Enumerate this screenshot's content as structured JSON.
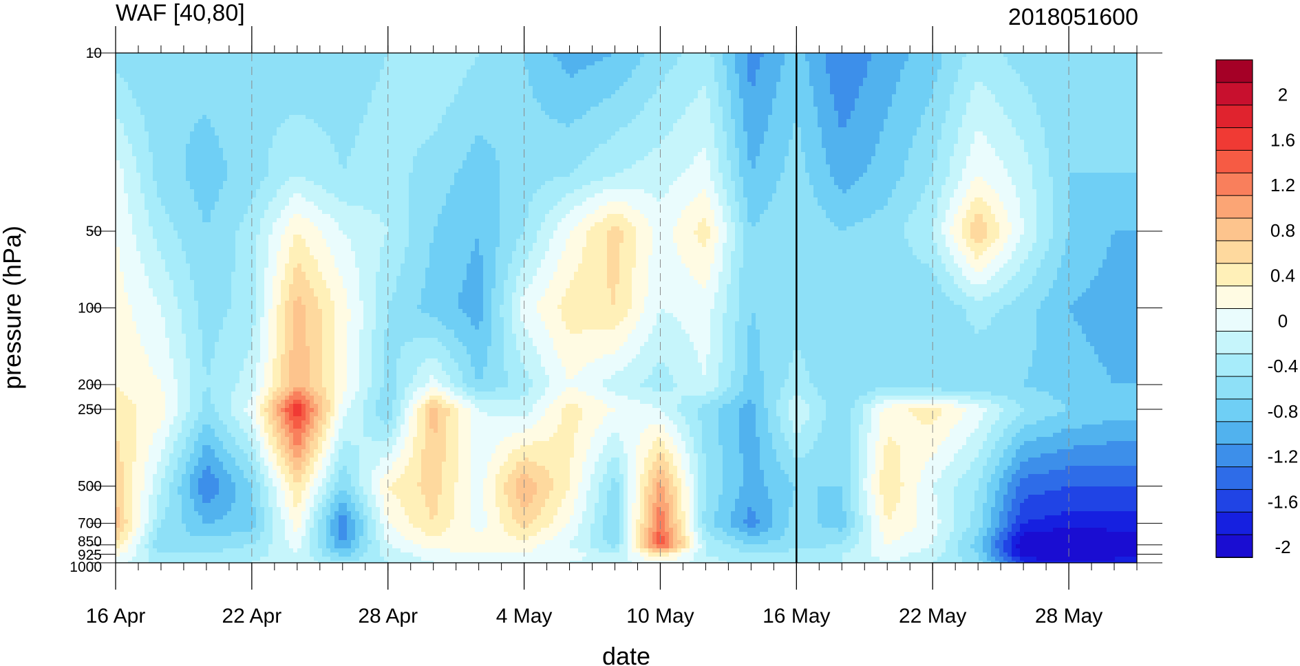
{
  "chart_data": {
    "type": "heatmap",
    "title": "WAF [40,80]",
    "subtitle": "2018051600",
    "xlabel": "date",
    "ylabel": "pressure (hPa)",
    "x_ticks": [
      "16 Apr",
      "22 Apr",
      "28 Apr",
      "4 May",
      "10 May",
      "16 May",
      "22 May",
      "28 May"
    ],
    "x_range": [
      "16 Apr",
      "31 May"
    ],
    "y_scale": "log",
    "y_reversed": true,
    "y_ticks": [
      10,
      50,
      100,
      200,
      250,
      500,
      700,
      850,
      925,
      1000
    ],
    "ylim": [
      10,
      1000
    ],
    "current_date_marker": "16 May",
    "dashed_gridlines": [
      "22 Apr",
      "28 Apr",
      "4 May",
      "10 May",
      "22 May",
      "28 May"
    ],
    "colorbar": {
      "labels": [
        "2",
        "1.6",
        "1.2",
        "0.8",
        "0.4",
        "0",
        "-0.4",
        "-0.8",
        "-1.2",
        "-1.6",
        "-2"
      ],
      "levels": [
        2.4,
        2.2,
        2.0,
        1.8,
        1.6,
        1.4,
        1.2,
        1.0,
        0.8,
        0.6,
        0.4,
        0.2,
        0.0,
        -0.2,
        -0.4,
        -0.6,
        -0.8,
        -1.0,
        -1.2,
        -1.4,
        -1.6,
        -1.8,
        -2.0,
        -2.2,
        -2.4
      ],
      "colors": [
        "#a50026",
        "#c8102e",
        "#e0232e",
        "#f03a34",
        "#f65b44",
        "#f97f5c",
        "#fba575",
        "#fdc48d",
        "#fed99e",
        "#fff0b8",
        "#fffbe3",
        "#eafcfd",
        "#c6f5fb",
        "#a7ecfa",
        "#8ee0f7",
        "#6fcff5",
        "#51b2ee",
        "#3d8fea",
        "#2e6ce8",
        "#2044e5",
        "#1620e0",
        "#1a0dd2"
      ]
    },
    "pressure_levels": [
      10,
      30,
      50,
      100,
      200,
      250,
      500,
      700,
      850,
      925,
      1000
    ],
    "days_x": [
      "16 Apr",
      "18 Apr",
      "20 Apr",
      "22 Apr",
      "24 Apr",
      "26 Apr",
      "28 Apr",
      "30 Apr",
      "2 May",
      "4 May",
      "6 May",
      "8 May",
      "10 May",
      "12 May",
      "14 May",
      "16 May",
      "18 May",
      "20 May",
      "22 May",
      "24 May",
      "26 May",
      "28 May",
      "30 May"
    ],
    "values": [
      [
        -0.5,
        -0.6,
        -0.5,
        -0.4,
        -0.6,
        -0.5,
        -0.4,
        -0.2,
        -0.4,
        -0.6,
        -0.9,
        -0.8,
        -0.5,
        -0.3,
        -1.1,
        -0.7,
        -1.2,
        -0.9,
        -0.7,
        -0.3,
        -0.5,
        -0.6,
        -0.5
      ],
      [
        0.1,
        -0.5,
        -0.7,
        -0.5,
        -0.2,
        -0.4,
        -0.3,
        -0.5,
        -0.7,
        -0.5,
        -0.4,
        -0.2,
        -0.1,
        0.1,
        -0.8,
        -0.5,
        -0.9,
        -0.7,
        -0.4,
        0.2,
        -0.1,
        -0.6,
        -0.6
      ],
      [
        0.2,
        -0.3,
        -0.6,
        -0.3,
        0.4,
        0.0,
        -0.2,
        -0.6,
        -0.8,
        -0.4,
        0.2,
        0.7,
        0.1,
        0.5,
        -0.6,
        -0.4,
        -0.6,
        -0.5,
        -0.2,
        0.8,
        0.0,
        -0.6,
        -0.8
      ],
      [
        0.3,
        0.0,
        -0.5,
        -0.3,
        0.9,
        0.3,
        -0.4,
        -0.7,
        -0.9,
        0.1,
        0.5,
        0.6,
        0.0,
        0.1,
        -0.6,
        -0.5,
        -0.6,
        -0.6,
        -0.6,
        -0.3,
        -0.5,
        -0.8,
        -0.9
      ],
      [
        0.4,
        0.2,
        -0.4,
        -0.1,
        1.0,
        0.3,
        -0.5,
        0.1,
        -0.6,
        -0.3,
        0.2,
        -0.1,
        -0.3,
        0.0,
        -0.7,
        -0.3,
        -0.6,
        -0.5,
        -0.6,
        -0.6,
        -0.6,
        -0.7,
        -0.8
      ],
      [
        0.5,
        0.3,
        -0.5,
        0.1,
        1.8,
        0.1,
        -0.6,
        0.9,
        0.0,
        -0.1,
        0.5,
        0.2,
        0.0,
        -0.5,
        -0.9,
        0.0,
        -0.6,
        0.3,
        0.5,
        0.1,
        -0.4,
        -0.6,
        -0.7
      ],
      [
        0.8,
        -0.2,
        -1.2,
        -0.6,
        0.6,
        -0.6,
        0.4,
        0.7,
        0.1,
        1.0,
        0.4,
        -0.5,
        1.1,
        -0.4,
        -0.9,
        -0.6,
        -0.6,
        0.6,
        0.0,
        -0.4,
        -1.3,
        -1.4,
        -1.4
      ],
      [
        0.9,
        -0.4,
        -0.8,
        -0.7,
        0.3,
        -1.2,
        0.2,
        0.6,
        0.1,
        0.7,
        0.2,
        -0.6,
        1.4,
        -0.5,
        -1.1,
        -0.5,
        -0.7,
        0.4,
        0.1,
        -0.5,
        -1.6,
        -1.7,
        -1.7
      ],
      [
        0.6,
        -0.6,
        -0.5,
        -0.4,
        0.1,
        -1.0,
        0.0,
        0.3,
        0.3,
        0.3,
        0.0,
        -0.5,
        1.6,
        -0.2,
        -0.6,
        -0.5,
        -0.4,
        0.2,
        0.0,
        -0.7,
        -2.0,
        -2.2,
        -2.0
      ],
      [
        0.3,
        -0.4,
        -0.4,
        -0.3,
        0.0,
        -0.7,
        -0.1,
        0.1,
        0.2,
        0.2,
        0.1,
        -0.2,
        0.6,
        -0.2,
        -0.4,
        -0.3,
        -0.2,
        0.1,
        -0.1,
        -0.6,
        -1.9,
        -2.1,
        -1.9
      ],
      [
        0.1,
        -0.3,
        -0.3,
        -0.2,
        0.0,
        -0.4,
        -0.2,
        0.0,
        0.1,
        0.1,
        0.0,
        -0.1,
        0.2,
        -0.1,
        -0.3,
        -0.2,
        -0.2,
        0.0,
        -0.2,
        -0.5,
        -1.6,
        -1.8,
        -1.7
      ]
    ]
  }
}
